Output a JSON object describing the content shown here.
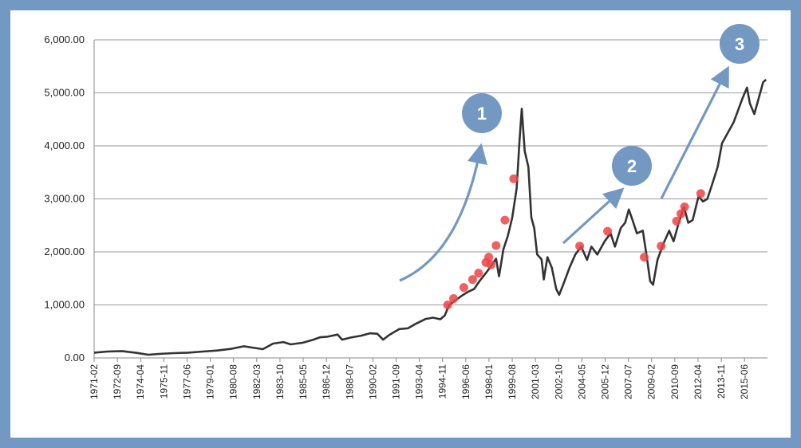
{
  "chart_data": {
    "type": "line",
    "title": "",
    "xlabel": "",
    "ylabel": "",
    "ylim": [
      0,
      6000
    ],
    "y_ticks": [
      "0.00",
      "1,000.00",
      "2,000.00",
      "3,000.00",
      "4,000.00",
      "5,000.00",
      "6,000.00"
    ],
    "y_tick_values": [
      0,
      1000,
      2000,
      3000,
      4000,
      5000,
      6000
    ],
    "x_tick_labels": [
      "1971-02",
      "1972-09",
      "1974-04",
      "1975-11",
      "1977-06",
      "1979-01",
      "1980-08",
      "1982-03",
      "1983-10",
      "1985-05",
      "1986-12",
      "1988-07",
      "1990-02",
      "1991-09",
      "1993-04",
      "1994-11",
      "1996-06",
      "1998-01",
      "1999-08",
      "2001-03",
      "2002-10",
      "2004-05",
      "2005-12",
      "2007-07",
      "2009-02",
      "2010-09",
      "2012-04",
      "2013-11",
      "2015-06"
    ],
    "grid": true,
    "legend": "none",
    "series": [
      {
        "line_color": "#333333",
        "points": [
          [
            1971.1,
            100
          ],
          [
            1972.0,
            120
          ],
          [
            1973.0,
            130
          ],
          [
            1974.0,
            95
          ],
          [
            1974.8,
            60
          ],
          [
            1975.5,
            75
          ],
          [
            1976.5,
            90
          ],
          [
            1977.5,
            100
          ],
          [
            1978.5,
            120
          ],
          [
            1979.5,
            140
          ],
          [
            1980.5,
            175
          ],
          [
            1981.3,
            220
          ],
          [
            1982.0,
            190
          ],
          [
            1982.6,
            165
          ],
          [
            1983.3,
            270
          ],
          [
            1984.0,
            300
          ],
          [
            1984.5,
            255
          ],
          [
            1985.3,
            285
          ],
          [
            1986.0,
            340
          ],
          [
            1986.5,
            390
          ],
          [
            1987.0,
            400
          ],
          [
            1987.7,
            440
          ],
          [
            1988.0,
            345
          ],
          [
            1988.6,
            385
          ],
          [
            1989.3,
            420
          ],
          [
            1989.9,
            465
          ],
          [
            1990.4,
            455
          ],
          [
            1990.8,
            345
          ],
          [
            1991.2,
            430
          ],
          [
            1991.9,
            545
          ],
          [
            1992.5,
            560
          ],
          [
            1993.0,
            640
          ],
          [
            1993.7,
            735
          ],
          [
            1994.2,
            760
          ],
          [
            1994.7,
            730
          ],
          [
            1995.0,
            800
          ],
          [
            1995.3,
            1000
          ],
          [
            1995.7,
            1080
          ],
          [
            1996.2,
            1180
          ],
          [
            1996.6,
            1250
          ],
          [
            1997.0,
            1300
          ],
          [
            1997.4,
            1460
          ],
          [
            1997.8,
            1600
          ],
          [
            1998.2,
            1750
          ],
          [
            1998.5,
            1870
          ],
          [
            1998.7,
            1540
          ],
          [
            1999.0,
            2050
          ],
          [
            1999.3,
            2300
          ],
          [
            1999.6,
            2650
          ],
          [
            1999.9,
            3200
          ],
          [
            2000.1,
            4100
          ],
          [
            2000.25,
            4700
          ],
          [
            2000.45,
            3900
          ],
          [
            2000.7,
            3600
          ],
          [
            2000.9,
            2650
          ],
          [
            2001.1,
            2450
          ],
          [
            2001.3,
            1950
          ],
          [
            2001.6,
            1860
          ],
          [
            2001.75,
            1480
          ],
          [
            2002.0,
            1900
          ],
          [
            2002.3,
            1700
          ],
          [
            2002.6,
            1300
          ],
          [
            2002.8,
            1190
          ],
          [
            2003.1,
            1400
          ],
          [
            2003.5,
            1700
          ],
          [
            2003.9,
            1950
          ],
          [
            2004.3,
            2100
          ],
          [
            2004.7,
            1850
          ],
          [
            2005.0,
            2100
          ],
          [
            2005.4,
            1950
          ],
          [
            2005.9,
            2200
          ],
          [
            2006.3,
            2350
          ],
          [
            2006.6,
            2100
          ],
          [
            2007.0,
            2450
          ],
          [
            2007.3,
            2550
          ],
          [
            2007.55,
            2800
          ],
          [
            2007.8,
            2600
          ],
          [
            2008.1,
            2350
          ],
          [
            2008.5,
            2400
          ],
          [
            2008.75,
            1950
          ],
          [
            2009.0,
            1450
          ],
          [
            2009.2,
            1380
          ],
          [
            2009.5,
            1850
          ],
          [
            2009.9,
            2150
          ],
          [
            2010.3,
            2400
          ],
          [
            2010.6,
            2200
          ],
          [
            2010.9,
            2500
          ],
          [
            2011.3,
            2850
          ],
          [
            2011.6,
            2550
          ],
          [
            2011.9,
            2600
          ],
          [
            2012.3,
            3050
          ],
          [
            2012.6,
            2950
          ],
          [
            2012.9,
            3000
          ],
          [
            2013.2,
            3250
          ],
          [
            2013.6,
            3600
          ],
          [
            2013.9,
            4050
          ],
          [
            2014.3,
            4250
          ],
          [
            2014.7,
            4450
          ],
          [
            2014.9,
            4600
          ],
          [
            2015.3,
            4900
          ],
          [
            2015.6,
            5100
          ],
          [
            2015.8,
            4800
          ],
          [
            2016.1,
            4600
          ],
          [
            2016.4,
            4900
          ],
          [
            2016.7,
            5200
          ],
          [
            2016.9,
            5250
          ]
        ]
      }
    ],
    "highlight_points": {
      "color": "#ee4444",
      "points": [
        [
          1995.2,
          1000
        ],
        [
          1995.6,
          1120
        ],
        [
          1996.3,
          1330
        ],
        [
          1996.9,
          1480
        ],
        [
          1997.3,
          1600
        ],
        [
          1997.8,
          1800
        ],
        [
          1998.0,
          1900
        ],
        [
          1998.15,
          1760
        ],
        [
          1998.5,
          2120
        ],
        [
          1999.1,
          2600
        ],
        [
          1999.7,
          3380
        ],
        [
          2004.2,
          2110
        ],
        [
          2006.1,
          2390
        ],
        [
          2008.6,
          1900
        ],
        [
          2009.75,
          2110
        ],
        [
          2010.8,
          2580
        ],
        [
          2011.1,
          2720
        ],
        [
          2011.35,
          2850
        ],
        [
          2012.45,
          3100
        ]
      ]
    },
    "annotations": [
      {
        "label": "1",
        "arrow_color": "#7398c2",
        "badge_color": "#7398c2"
      },
      {
        "label": "2",
        "arrow_color": "#7398c2",
        "badge_color": "#7398c2"
      },
      {
        "label": "3",
        "arrow_color": "#7398c2",
        "badge_color": "#7398c2"
      }
    ]
  }
}
